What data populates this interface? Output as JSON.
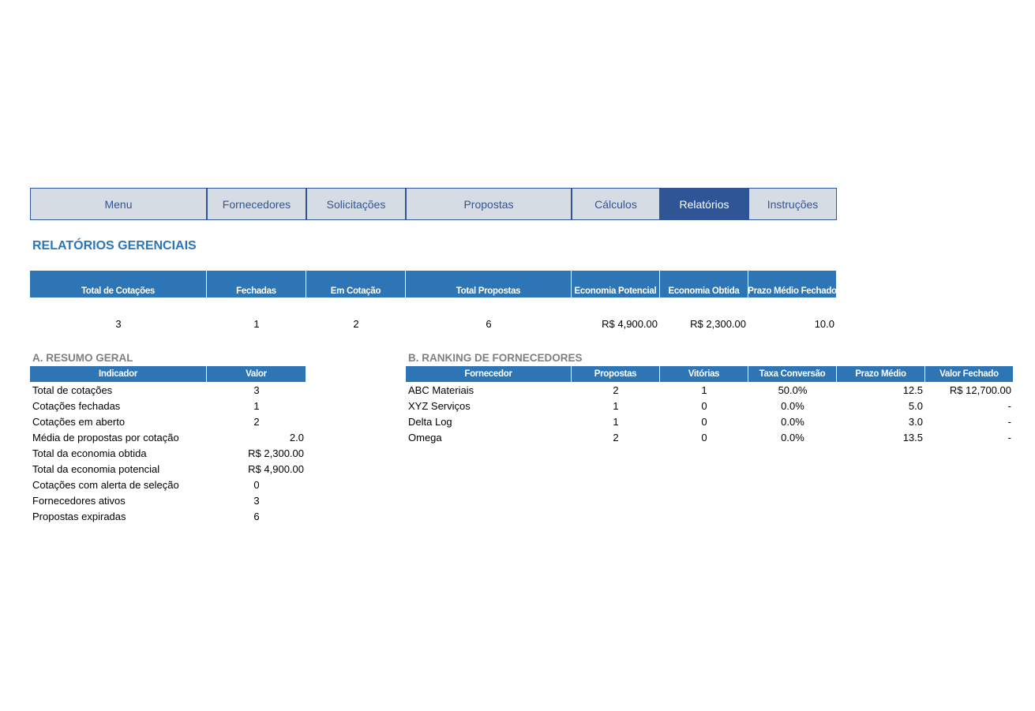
{
  "nav": [
    "Menu",
    "Fornecedores",
    "Solicitações",
    "Propostas",
    "Cálculos",
    "Relatórios",
    "Instruções"
  ],
  "title": "RELATÓRIOS GERENCIAIS",
  "kpi": {
    "headers": [
      "Total de Cotações",
      "Fechadas",
      "Em Cotação",
      "Total Propostas",
      "Economia Potencial",
      "Economia Obtida",
      "Prazo Médio Fechado"
    ],
    "values": [
      "3",
      "1",
      "2",
      "6",
      "R$ 4,900.00",
      "R$ 2,300.00",
      "10.0"
    ]
  },
  "summary": {
    "title": "A. RESUMO GERAL",
    "headers": [
      "Indicador",
      "Valor"
    ],
    "rows": [
      [
        "Total de cotações",
        "3"
      ],
      [
        "Cotações fechadas",
        "1"
      ],
      [
        "Cotações em aberto",
        "2"
      ],
      [
        "Média de propostas por cotação",
        "2.0"
      ],
      [
        "Total da economia obtida",
        "R$ 2,300.00"
      ],
      [
        "Total da economia potencial",
        "R$ 4,900.00"
      ],
      [
        "Cotações com alerta de seleção",
        "0"
      ],
      [
        "Fornecedores ativos",
        "3"
      ],
      [
        "Propostas expiradas",
        "6"
      ]
    ]
  },
  "ranking": {
    "title": "B. RANKING DE FORNECEDORES",
    "headers": [
      "Fornecedor",
      "Propostas",
      "Vitórias",
      "Taxa Conversão",
      "Prazo Médio",
      "Valor Fechado"
    ],
    "rows": [
      [
        "ABC Materiais",
        "2",
        "1",
        "50.0%",
        "12.5",
        "R$ 12,700.00"
      ],
      [
        "XYZ Serviços",
        "1",
        "0",
        "0.0%",
        "5.0",
        "-"
      ],
      [
        "Delta Log",
        "1",
        "0",
        "0.0%",
        "3.0",
        "-"
      ],
      [
        "Omega",
        "2",
        "0",
        "0.0%",
        "13.5",
        "-"
      ]
    ]
  }
}
